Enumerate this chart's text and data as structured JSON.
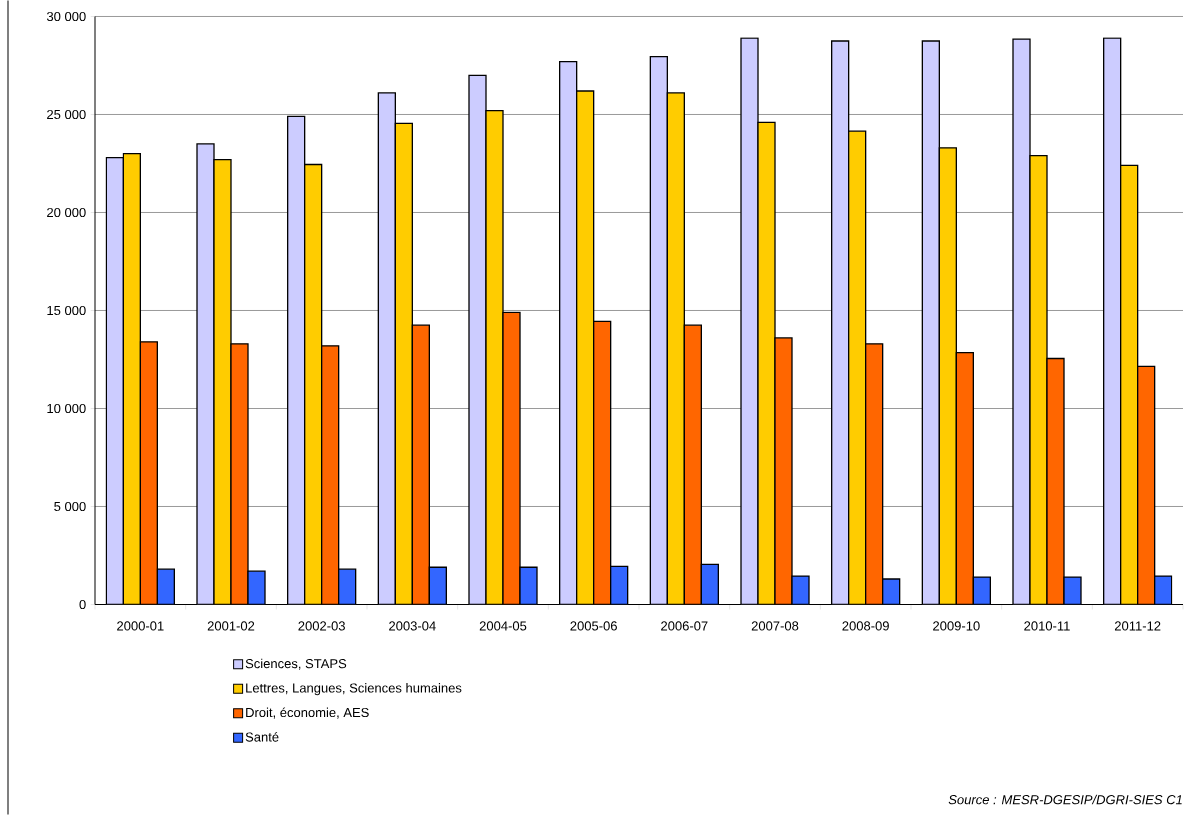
{
  "chart_data": {
    "type": "bar",
    "categories": [
      "2000-01",
      "2001-02",
      "2002-03",
      "2003-04",
      "2004-05",
      "2005-06",
      "2006-07",
      "2007-08",
      "2008-09",
      "2009-10",
      "2010-11",
      "2011-12"
    ],
    "series": [
      {
        "name": "Sciences, STAPS",
        "color": "#ccccff",
        "values": [
          22800,
          23500,
          24900,
          26100,
          27000,
          27700,
          27950,
          28900,
          28750,
          28750,
          28850,
          28900
        ]
      },
      {
        "name": "Lettres, Langues, Sciences humaines",
        "color": "#ffcc00",
        "values": [
          23000,
          22700,
          22450,
          24550,
          25200,
          26200,
          26100,
          24600,
          24150,
          23300,
          22900,
          22400
        ]
      },
      {
        "name": "Droit, économie, AES",
        "color": "#ff6600",
        "values": [
          13400,
          13300,
          13200,
          14250,
          14900,
          14450,
          14250,
          13600,
          13300,
          12850,
          12550,
          12150
        ]
      },
      {
        "name": "Santé",
        "color": "#3366ff",
        "values": [
          1800,
          1700,
          1800,
          1900,
          1900,
          1950,
          2050,
          1450,
          1300,
          1400,
          1400,
          1450
        ]
      }
    ],
    "ylim": [
      0,
      30000
    ],
    "yticks": [
      {
        "value": 0,
        "label": "0"
      },
      {
        "value": 5000,
        "label": "5 000"
      },
      {
        "value": 10000,
        "label": "10 000"
      },
      {
        "value": 15000,
        "label": "15 000"
      },
      {
        "value": 20000,
        "label": "20 000"
      },
      {
        "value": 25000,
        "label": "25 000"
      },
      {
        "value": 30000,
        "label": "30 000"
      }
    ],
    "grid": "y",
    "legend": "bottom left",
    "annotations": [
      "Source :  MESR-DGESIP/DGRI-SIES C1"
    ]
  }
}
